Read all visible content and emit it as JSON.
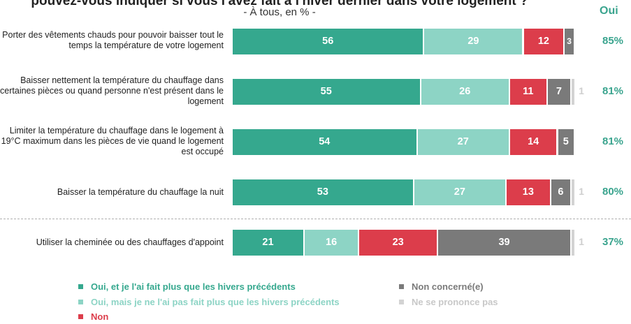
{
  "title": "pouvez-vous indiquer si vous l'avez fait à l'hiver dernier dans votre logement ?",
  "subtitle": "- À tous, en % -",
  "oui_header": "Oui",
  "colors": {
    "plus": "#35a88e",
    "pas_plus": "#8dd4c5",
    "non": "#dc3d4b",
    "non_concerne": "#7a7a7a",
    "nsp": "#d3d3d3",
    "total": "#3aa48e"
  },
  "chart_data": {
    "type": "bar",
    "orientation": "horizontal",
    "stacked": true,
    "categories": [
      "Porter des vêtements chauds pour pouvoir baisser tout le temps la température de votre logement",
      "Baisser nettement la température du chauffage dans certaines pièces ou quand personne n'est présent dans le logement",
      "Limiter la température du chauffage dans le logement à 19°C maximum dans les pièces de vie quand le logement est occupé",
      "Baisser la température du chauffage la nuit",
      "Utiliser la cheminée ou des chauffages d'appoint"
    ],
    "series": [
      {
        "name": "Oui, et je l'ai fait plus que les hivers précédents",
        "values": [
          56,
          55,
          54,
          53,
          21
        ]
      },
      {
        "name": "Oui, mais je ne l'ai pas fait plus que les hivers précédents",
        "values": [
          29,
          26,
          27,
          27,
          16
        ]
      },
      {
        "name": "Non",
        "values": [
          12,
          11,
          14,
          13,
          23
        ]
      },
      {
        "name": "Non concerné(e)",
        "values": [
          3,
          7,
          5,
          6,
          39
        ]
      },
      {
        "name": "Ne se prononce pas",
        "values": [
          0,
          1,
          0,
          1,
          1
        ]
      }
    ],
    "totals_oui": [
      "85%",
      "81%",
      "81%",
      "80%",
      "37%"
    ],
    "xlim": [
      0,
      100
    ],
    "grid": false,
    "legend_position": "bottom"
  }
}
